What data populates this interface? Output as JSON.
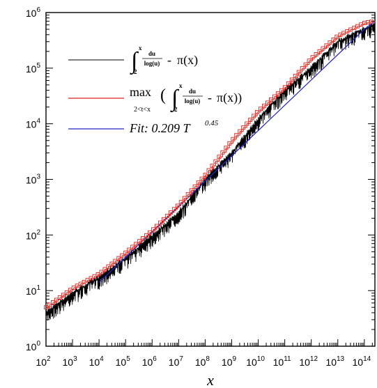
{
  "chart_data": {
    "type": "line",
    "xscale": "log",
    "yscale": "log",
    "xlim": [
      100.0,
      250000000000000.0
    ],
    "ylim": [
      1,
      1000000.0
    ],
    "x_ticks": [
      {
        "base": "10",
        "exp": "2"
      },
      {
        "base": "10",
        "exp": "3"
      },
      {
        "base": "10",
        "exp": "4"
      },
      {
        "base": "10",
        "exp": "5"
      },
      {
        "base": "10",
        "exp": "6"
      },
      {
        "base": "10",
        "exp": "7"
      },
      {
        "base": "10",
        "exp": "8"
      },
      {
        "base": "10",
        "exp": "9"
      },
      {
        "base": "10",
        "exp": "10"
      },
      {
        "base": "10",
        "exp": "11"
      },
      {
        "base": "10",
        "exp": "12"
      },
      {
        "base": "10",
        "exp": "13"
      },
      {
        "base": "10",
        "exp": "14"
      }
    ],
    "y_ticks": [
      {
        "base": "10",
        "exp": "0"
      },
      {
        "base": "10",
        "exp": "1"
      },
      {
        "base": "10",
        "exp": "2"
      },
      {
        "base": "10",
        "exp": "3"
      },
      {
        "base": "10",
        "exp": "4"
      },
      {
        "base": "10",
        "exp": "5"
      },
      {
        "base": "10",
        "exp": "6"
      }
    ],
    "xlabel": "x",
    "ylabel": "",
    "grid": false,
    "legend_position": "top-left",
    "series": [
      {
        "key": "black",
        "color": "#000000",
        "x": [
          100.0,
          1000.0,
          10000.0,
          100000.0,
          1000000.0,
          10000000.0,
          100000000.0,
          1000000000.0,
          10000000000.0,
          100000000000.0,
          1000000000000.0,
          10000000000000.0,
          100000000000000.0,
          250000000000000.0
        ],
        "values": [
          4,
          9,
          17,
          38,
          95,
          250,
          1000,
          3000,
          12000,
          40000,
          100000,
          300000,
          500000,
          600000
        ]
      },
      {
        "key": "red",
        "color": "#e0201a",
        "x": [
          100.0,
          1000.0,
          10000.0,
          100000.0,
          1000000.0,
          10000000.0,
          100000000.0,
          1000000000.0,
          10000000000.0,
          100000000000.0,
          1000000000000.0,
          10000000000000.0,
          100000000000000.0,
          250000000000000.0
        ],
        "values": [
          5,
          11,
          20,
          48,
          120,
          350,
          1200,
          5000,
          17000,
          45000,
          150000,
          380000,
          650000,
          700000
        ]
      },
      {
        "key": "blue",
        "color": "#2020c8",
        "x": [
          10000.0,
          100000000000000.0,
          250000000000000.0
        ],
        "values": [
          14,
          500000,
          700000
        ]
      }
    ],
    "legend": {
      "black": {
        "int_upper": "x",
        "int_lower": "2",
        "frac_num": "du",
        "frac_den": "log(u)",
        "minus": "-",
        "pi": "π(x)"
      },
      "red": {
        "max": "max",
        "max_sub": "2<t<x",
        "lparen": "(",
        "int_upper": "x",
        "int_lower": "2",
        "frac_num": "du",
        "frac_den": "log(u)",
        "minus": "-",
        "pi": "π(x))"
      },
      "blue": {
        "fit": "Fit: 0.209 T",
        "fit_exp": "0.45"
      }
    }
  }
}
